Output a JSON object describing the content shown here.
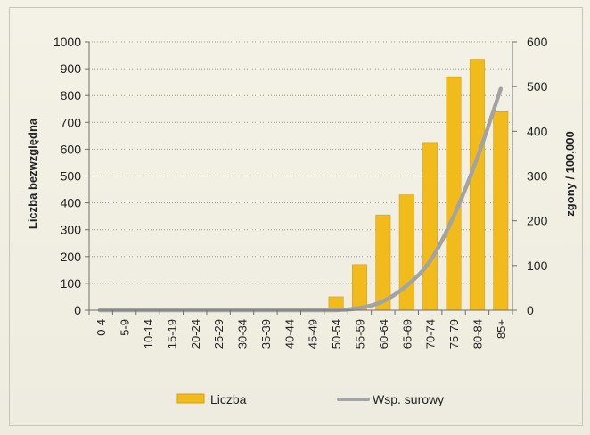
{
  "chart_data": {
    "type": "bar",
    "categories": [
      "0-4",
      "5-9",
      "10-14",
      "15-19",
      "20-24",
      "25-29",
      "30-34",
      "35-39",
      "40-44",
      "45-49",
      "50-54",
      "55-59",
      "60-64",
      "65-69",
      "70-74",
      "75-79",
      "80-84",
      "85+"
    ],
    "series": [
      {
        "name": "Liczba",
        "type": "bar",
        "axis": "left",
        "color": "#f2bb1c",
        "values": [
          0,
          0,
          0,
          0,
          0,
          0,
          0,
          0,
          0,
          0,
          50,
          170,
          355,
          430,
          625,
          870,
          935,
          740
        ]
      },
      {
        "name": "Wsp. surowy",
        "type": "line",
        "axis": "right",
        "color": "#a3a3a3",
        "values": [
          0,
          0,
          0,
          0,
          0,
          0,
          0,
          0,
          0,
          0,
          0,
          5,
          20,
          55,
          110,
          210,
          340,
          495
        ]
      }
    ],
    "ylabel": "Liczba bezwzględna",
    "y2label": "zgony / 100,000",
    "ylim": [
      0,
      1000
    ],
    "y2lim": [
      0,
      600
    ],
    "yticks": [
      "0",
      "100",
      "200",
      "300",
      "400",
      "500",
      "600",
      "700",
      "800",
      "900",
      "1000"
    ],
    "y2ticks": [
      "0",
      "100",
      "200",
      "300",
      "400",
      "500",
      "600"
    ],
    "grid": "horizontal dotted",
    "legend_position": "bottom"
  }
}
